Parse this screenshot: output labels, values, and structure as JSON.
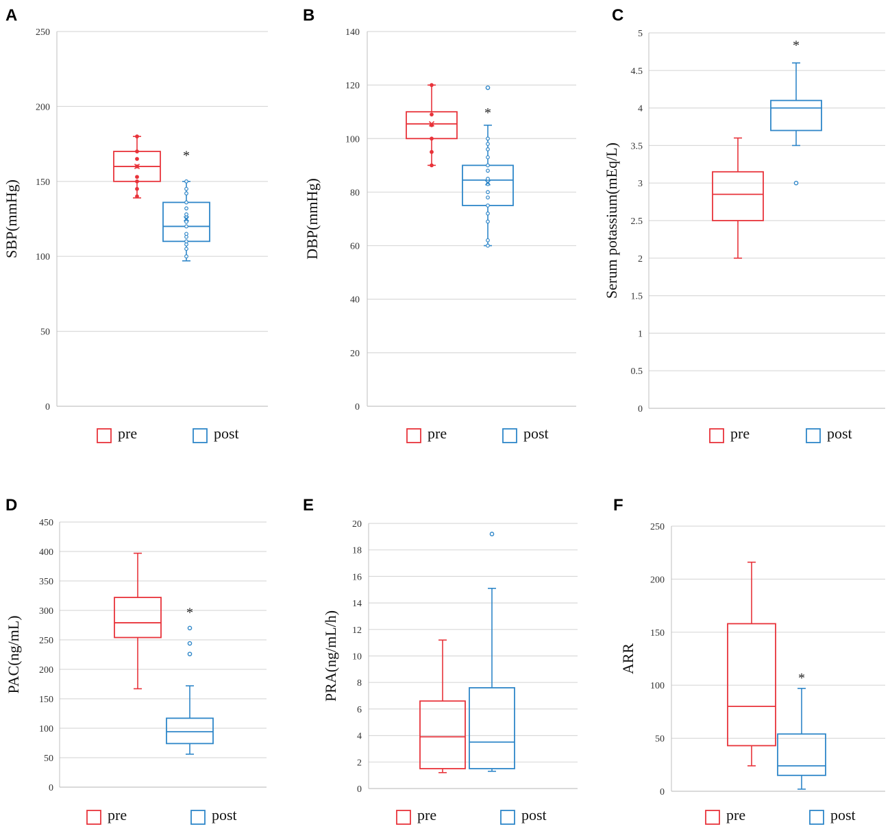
{
  "colors": {
    "pre": "#e8333a",
    "post": "#2e86c8",
    "grid": "#d9d9d9",
    "frame": "#bfbfbf"
  },
  "chart_data": [
    {
      "id": "A",
      "type": "box",
      "panel_label": "A",
      "ylabel": "SBP(mmHg)",
      "ylim": [
        0,
        250
      ],
      "yticks": [
        0,
        50,
        100,
        150,
        200,
        250
      ],
      "legend": [
        "pre",
        "post"
      ],
      "series": [
        {
          "name": "pre",
          "q1": 150,
          "median": 160,
          "q3": 170,
          "whisker_low": 139,
          "whisker_high": 180,
          "mean": 160,
          "outliers": [],
          "points": [
            140,
            145,
            150,
            153,
            160,
            165,
            170,
            180
          ]
        },
        {
          "name": "post",
          "q1": 110,
          "median": 120,
          "q3": 136,
          "whisker_low": 97,
          "whisker_high": 150,
          "mean": 125,
          "outliers": [],
          "points": [
            100,
            105,
            108,
            110,
            113,
            115,
            120,
            123,
            126,
            128,
            132,
            136,
            142,
            145,
            150
          ]
        }
      ],
      "annotation": "*",
      "annotation_value": 168
    },
    {
      "id": "B",
      "type": "box",
      "panel_label": "B",
      "ylabel": "DBP(mmHg)",
      "ylim": [
        0,
        140
      ],
      "yticks": [
        0,
        20,
        40,
        60,
        80,
        100,
        120,
        140
      ],
      "legend": [
        "pre",
        "post"
      ],
      "series": [
        {
          "name": "pre",
          "q1": 100,
          "median": 105.5,
          "q3": 110,
          "whisker_low": 90,
          "whisker_high": 120,
          "mean": 105.5,
          "outliers": [],
          "points": [
            90,
            95,
            100,
            105,
            109,
            120
          ]
        },
        {
          "name": "post",
          "q1": 75,
          "median": 84.5,
          "q3": 90,
          "whisker_low": 60,
          "whisker_high": 105,
          "mean": 83.5,
          "outliers": [
            119
          ],
          "points": [
            60,
            62,
            69,
            72,
            75,
            78,
            80,
            83,
            85,
            88,
            90,
            93,
            96,
            98,
            100
          ]
        }
      ],
      "annotation": "*",
      "annotation_value": 110
    },
    {
      "id": "C",
      "type": "box",
      "panel_label": "C",
      "ylabel": "Serum potassium(mEq/L)",
      "ylim": [
        0,
        5
      ],
      "yticks": [
        0,
        0.5,
        1,
        1.5,
        2,
        2.5,
        3,
        3.5,
        4,
        4.5,
        5
      ],
      "legend": [
        "pre",
        "post"
      ],
      "series": [
        {
          "name": "pre",
          "q1": 2.5,
          "median": 2.85,
          "q3": 3.15,
          "whisker_low": 2.0,
          "whisker_high": 3.6,
          "outliers": []
        },
        {
          "name": "post",
          "q1": 3.7,
          "median": 4.0,
          "q3": 4.1,
          "whisker_low": 3.5,
          "whisker_high": 4.6,
          "outliers": [
            3.0
          ]
        }
      ],
      "annotation": "*",
      "annotation_value": 4.85
    },
    {
      "id": "D",
      "type": "box",
      "panel_label": "D",
      "ylabel": "PAC(ng/mL)",
      "ylim": [
        0,
        450
      ],
      "yticks": [
        0,
        50,
        100,
        150,
        200,
        250,
        300,
        350,
        400,
        450
      ],
      "legend": [
        "pre",
        "post"
      ],
      "series": [
        {
          "name": "pre",
          "q1": 254,
          "median": 279,
          "q3": 322,
          "whisker_low": 167,
          "whisker_high": 397,
          "outliers": []
        },
        {
          "name": "post",
          "q1": 74,
          "median": 94,
          "q3": 117,
          "whisker_low": 56,
          "whisker_high": 172,
          "outliers": [
            226,
            244,
            270
          ]
        }
      ],
      "annotation": "*",
      "annotation_value": 298
    },
    {
      "id": "E",
      "type": "box",
      "panel_label": "E",
      "ylabel": "PRA(ng/mL/h)",
      "ylim": [
        0,
        20
      ],
      "yticks": [
        0,
        2,
        4,
        6,
        8,
        10,
        12,
        14,
        16,
        18,
        20
      ],
      "legend": [
        "pre",
        "post"
      ],
      "series": [
        {
          "name": "pre",
          "q1": 1.5,
          "median": 3.9,
          "q3": 6.6,
          "whisker_low": 1.2,
          "whisker_high": 11.2,
          "outliers": []
        },
        {
          "name": "post",
          "q1": 1.5,
          "median": 3.5,
          "q3": 7.6,
          "whisker_low": 1.3,
          "whisker_high": 15.1,
          "outliers": [
            19.2
          ]
        }
      ],
      "annotation": "",
      "annotation_value": null
    },
    {
      "id": "F",
      "type": "box",
      "panel_label": "F",
      "ylabel": "ARR",
      "ylim": [
        0,
        250
      ],
      "yticks": [
        0,
        50,
        100,
        150,
        200,
        250
      ],
      "legend": [
        "pre",
        "post"
      ],
      "series": [
        {
          "name": "pre",
          "q1": 43,
          "median": 80,
          "q3": 158,
          "whisker_low": 24,
          "whisker_high": 216,
          "outliers": []
        },
        {
          "name": "post",
          "q1": 15,
          "median": 24,
          "q3": 54,
          "whisker_low": 2,
          "whisker_high": 97,
          "outliers": []
        }
      ],
      "annotation": "*",
      "annotation_value": 108
    }
  ]
}
